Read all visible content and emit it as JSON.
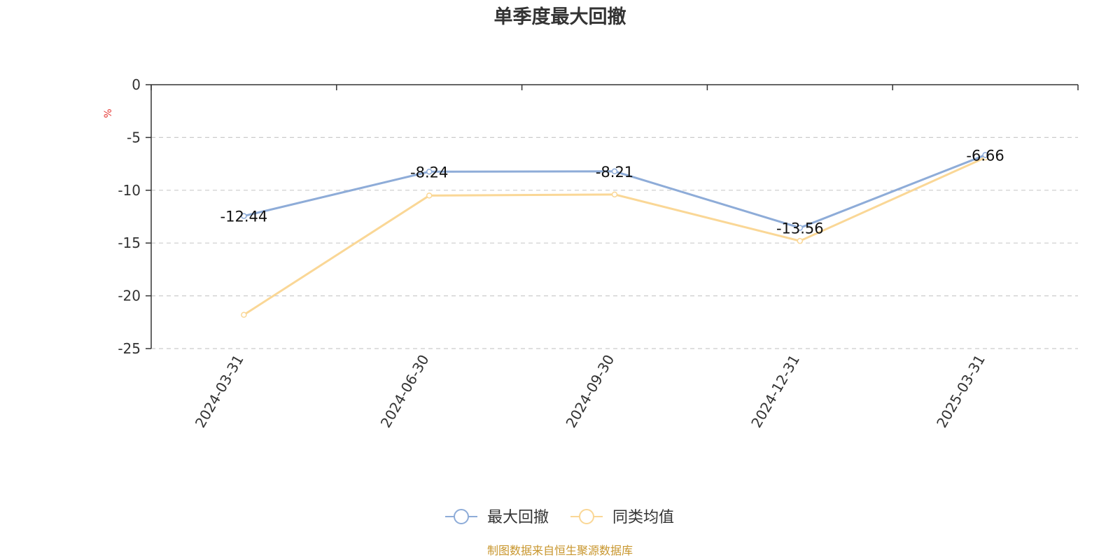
{
  "chart_data": {
    "type": "line",
    "title": "单季度最大回撤",
    "ylabel": "%",
    "xlabel": "",
    "categories": [
      "2024-03-31",
      "2024-06-30",
      "2024-09-30",
      "2024-12-31",
      "2025-03-31"
    ],
    "ylim": [
      -25,
      0
    ],
    "yticks": [
      0,
      -5,
      -10,
      -15,
      -20,
      -25
    ],
    "grid": true,
    "legend_position": "bottom-center",
    "series": [
      {
        "name": "最大回撤",
        "values": [
          -12.44,
          -8.24,
          -8.21,
          -13.56,
          -6.66
        ],
        "labels": [
          "-12.44",
          "-8.24",
          "-8.21",
          "-13.56",
          "-6.66"
        ],
        "color": "#8eacd8"
      },
      {
        "name": "同类均值",
        "values": [
          -21.8,
          -10.5,
          -10.4,
          -14.8,
          -6.9
        ],
        "color": "#fad796"
      }
    ]
  },
  "source_text": "制图数据来自恒生聚源数据库",
  "colors": {
    "unit": "#e53935",
    "source": "#c8962d",
    "axis": "#333333",
    "grid": "#cccccc"
  }
}
